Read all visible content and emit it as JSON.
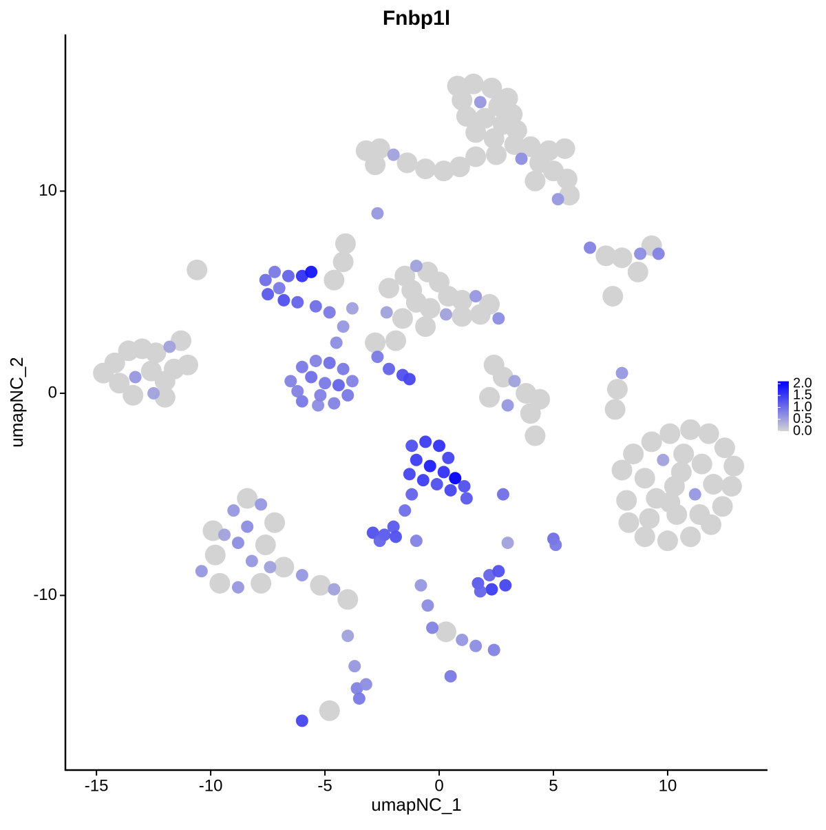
{
  "chart_data": {
    "type": "scatter",
    "title": "Fnbp1l",
    "x_label": "umapNC_1",
    "y_label": "umapNC_2",
    "xlim": [
      -16.36,
      14.37
    ],
    "ylim": [
      -18.64,
      17.75
    ],
    "xticks": [
      -15,
      -10,
      -5,
      0,
      5,
      10
    ],
    "yticks": [
      -10,
      0,
      10
    ],
    "color_low": "#d3d3d3",
    "color_high": "#0000ff",
    "color_lim": [
      0,
      2.1
    ],
    "colorbar_ticks": [
      {
        "value": 0,
        "label": "0.0"
      },
      {
        "value": 0.5,
        "label": "0.5"
      },
      {
        "value": 1,
        "label": "1.0"
      },
      {
        "value": 1.5,
        "label": "1.5"
      },
      {
        "value": 2,
        "label": "2.0"
      }
    ],
    "x": [
      0.8,
      1.5,
      2.3,
      3.0,
      1.0,
      1.8,
      2.6,
      3.2,
      1.2,
      2.0,
      2.8,
      3.4,
      1.6,
      2.4,
      3.3,
      4.0,
      4.8,
      5.5,
      4.4,
      5.0,
      5.6,
      5.7,
      5.2,
      4.2,
      3.6,
      2.5,
      -3.2,
      -2.6,
      -2.0,
      -1.4,
      -0.6,
      0.2,
      0.9,
      1.6,
      -2.8,
      -2.7,
      -14.7,
      -14.2,
      -13.6,
      -13.0,
      -12.4,
      -11.8,
      -11.3,
      -11.0,
      -14.0,
      -13.3,
      -12.6,
      -12.0,
      -11.6,
      -13.4,
      -12.5,
      -12.0,
      -10.6,
      -6.5,
      -6.0,
      -5.4,
      -4.8,
      -4.2,
      -3.8,
      -4.0,
      -4.6,
      -5.3,
      -6.0,
      -6.2,
      -5.6,
      -5.0,
      -4.4,
      -5.2,
      -4.5,
      -4.2,
      -4.8,
      -5.4,
      -4.6,
      -4.2,
      -3.8,
      -2.7,
      -2.2,
      -1.6,
      -1.3,
      -7.6,
      -7.2,
      -6.6,
      -7.5,
      -6.8,
      -6.2,
      -7.0,
      -6.0,
      -5.6,
      -2.2,
      -1.5,
      -1.0,
      -0.5,
      0.0,
      0.4,
      1.0,
      1.6,
      2.2,
      2.6,
      1.8,
      1.0,
      0.3,
      -0.4,
      -1.0,
      -1.6,
      -2.3,
      -1.2,
      -0.6,
      -2.8,
      -1.9,
      -4.1,
      -1.2,
      -0.6,
      0.0,
      0.4,
      -1.0,
      -0.4,
      0.2,
      0.7,
      1.1,
      1.2,
      -1.3,
      -0.7,
      -0.1,
      0.5,
      -1.2,
      -1.5,
      -2.0,
      -2.9,
      -2.4,
      -1.9,
      -2.6,
      -1.0,
      2.8,
      3.0,
      5.0,
      5.1,
      1.7,
      2.2,
      2.6,
      2.9,
      2.3,
      1.8,
      -0.8,
      -0.5,
      -0.3,
      0.3,
      1.0,
      1.6,
      2.4,
      0.5,
      2.4,
      2.8,
      3.3,
      3.8,
      4.4,
      3.0,
      2.2,
      4.0,
      4.2,
      6.6,
      7.3,
      8.0,
      8.8,
      9.6,
      9.3,
      8.7,
      7.6,
      8.0,
      7.8,
      7.7,
      8.0,
      8.5,
      9.3,
      10.1,
      11.0,
      11.8,
      12.5,
      12.9,
      12.8,
      12.4,
      11.9,
      11.0,
      10.0,
      9.0,
      8.3,
      8.2,
      9.0,
      9.8,
      10.7,
      11.5,
      12.0,
      11.2,
      10.3,
      9.5,
      9.2,
      10.4,
      11.4,
      10.1,
      10.6,
      -10.4,
      -9.8,
      -9.4,
      -9.0,
      -8.4,
      -7.8,
      -7.2,
      -8.8,
      -8.2,
      -9.6,
      -8.8,
      -7.8,
      -7.4,
      -6.8,
      -6.0,
      -5.2,
      -4.6,
      -4.0,
      -8.4,
      -7.6,
      -9.9,
      -4.0,
      -3.7,
      -3.6,
      -3.5,
      -3.2,
      -6.0,
      -4.8
    ],
    "y": [
      15.2,
      15.3,
      15.1,
      14.6,
      14.5,
      14.4,
      14.2,
      13.8,
      13.7,
      13.6,
      13.3,
      13.0,
      12.9,
      12.6,
      12.3,
      12.2,
      12.0,
      12.1,
      11.4,
      11.0,
      10.6,
      9.8,
      9.6,
      10.5,
      11.6,
      11.8,
      12.0,
      12.1,
      11.8,
      11.4,
      11.1,
      11.0,
      11.2,
      11.7,
      11.3,
      8.9,
      1.0,
      1.5,
      2.1,
      2.2,
      2.0,
      2.3,
      2.6,
      1.4,
      0.5,
      0.8,
      1.1,
      0.6,
      1.2,
      -0.1,
      0.0,
      -0.2,
      6.1,
      0.6,
      1.3,
      1.6,
      1.5,
      1.2,
      0.6,
      -0.1,
      -0.5,
      -0.6,
      -0.4,
      0.1,
      0.8,
      0.5,
      0.4,
      -0.1,
      2.5,
      3.3,
      4.0,
      4.3,
      5.6,
      6.5,
      4.2,
      1.8,
      1.2,
      0.9,
      0.7,
      5.6,
      6.0,
      5.8,
      4.9,
      4.6,
      4.5,
      5.2,
      5.8,
      6.0,
      5.2,
      5.8,
      6.3,
      6.0,
      5.5,
      4.8,
      4.6,
      4.8,
      4.4,
      3.7,
      3.9,
      3.8,
      3.9,
      4.2,
      4.5,
      3.7,
      4.0,
      5.1,
      3.3,
      2.5,
      2.6,
      7.4,
      -2.6,
      -2.4,
      -2.6,
      -3.2,
      -3.3,
      -3.6,
      -3.9,
      -4.2,
      -4.6,
      -5.2,
      -4.0,
      -4.3,
      -4.5,
      -4.8,
      -5.0,
      -5.8,
      -6.6,
      -6.9,
      -7.0,
      -7.1,
      -7.3,
      -7.3,
      -5.0,
      -7.4,
      -7.2,
      -7.5,
      -9.4,
      -9.0,
      -8.8,
      -9.5,
      -9.7,
      -9.8,
      -9.5,
      -10.5,
      -11.6,
      -11.8,
      -12.2,
      -12.5,
      -12.7,
      -14.0,
      1.4,
      0.8,
      0.6,
      0.0,
      -0.3,
      -0.6,
      -0.2,
      -1.0,
      -2.1,
      7.2,
      6.8,
      6.7,
      6.9,
      6.9,
      7.3,
      6.0,
      4.8,
      1.0,
      0.2,
      -0.8,
      -3.8,
      -3.0,
      -2.4,
      -2.0,
      -1.8,
      -2.0,
      -2.7,
      -3.6,
      -4.6,
      -5.6,
      -6.5,
      -7.1,
      -7.3,
      -7.1,
      -6.4,
      -5.3,
      -4.2,
      -3.3,
      -3.0,
      -3.5,
      -4.5,
      -5.0,
      -4.6,
      -5.2,
      -6.2,
      -6.0,
      -6.0,
      -5.4,
      -3.9,
      -8.8,
      -8.0,
      -7.0,
      -5.8,
      -5.2,
      -5.5,
      -6.4,
      -7.4,
      -8.3,
      -9.4,
      -9.6,
      -9.4,
      -8.6,
      -8.6,
      -9.0,
      -9.5,
      -9.7,
      -10.2,
      -6.6,
      -7.5,
      -6.8,
      -12.0,
      -13.5,
      -14.6,
      -15.1,
      -14.4,
      -16.2,
      -15.7
    ],
    "values": [
      0,
      0,
      0,
      0,
      0,
      0.6,
      0,
      0,
      0,
      0,
      0,
      0,
      0,
      0,
      0,
      0,
      0,
      0,
      0,
      0,
      0,
      0,
      0.6,
      0,
      0.7,
      0,
      0,
      0,
      0.5,
      0,
      0,
      0,
      0,
      0,
      0,
      0.6,
      0,
      0,
      0,
      0,
      0,
      0.5,
      0,
      0,
      0,
      0.6,
      0,
      0,
      0,
      0,
      0.5,
      0,
      0,
      0.8,
      0.9,
      0.8,
      1.0,
      0.9,
      0.8,
      0.9,
      0.8,
      0.7,
      0.9,
      0.8,
      1.0,
      0.9,
      1.1,
      0.8,
      0.7,
      0.6,
      0.9,
      1.0,
      0,
      0,
      0.5,
      0.9,
      1.1,
      1.3,
      1.4,
      1.0,
      0.9,
      1.1,
      1.2,
      1.3,
      1.1,
      0.9,
      1.6,
      1.9,
      0,
      0,
      0.5,
      0,
      0,
      0,
      0,
      0.6,
      0,
      0.7,
      0,
      0,
      0.5,
      0,
      0,
      0,
      0.5,
      0,
      0,
      0,
      0,
      0,
      1.3,
      1.5,
      1.6,
      1.4,
      1.5,
      1.8,
      1.6,
      2.1,
      1.3,
      1.2,
      1.4,
      1.5,
      1.3,
      1.4,
      1.1,
      1.0,
      1.2,
      1.3,
      1.2,
      1.3,
      1.1,
      0.8,
      1.0,
      0.5,
      1.0,
      0.9,
      1.2,
      1.1,
      1.3,
      1.4,
      1.5,
      1.1,
      0.6,
      0.7,
      0.8,
      0,
      0.6,
      0.7,
      0.8,
      0.9,
      0,
      0,
      0.5,
      0,
      0,
      0.6,
      0,
      0,
      0,
      0.8,
      0,
      0,
      0.7,
      0.8,
      0,
      0,
      0,
      0.6,
      0,
      0,
      0,
      0,
      0,
      0,
      0,
      0,
      0,
      0,
      0,
      0,
      0,
      0,
      0,
      0,
      0,
      0,
      0,
      0.5,
      0,
      0,
      0,
      0.6,
      0,
      0,
      0,
      0,
      0,
      0,
      0,
      0.6,
      0,
      0.5,
      0.6,
      0,
      0.6,
      0,
      0.7,
      0.6,
      0,
      0.6,
      0,
      0.5,
      0,
      0.6,
      0,
      0.5,
      0,
      0.7,
      0,
      0,
      0.5,
      0.6,
      0.8,
      0.9,
      0.7,
      1.4,
      0
    ]
  }
}
